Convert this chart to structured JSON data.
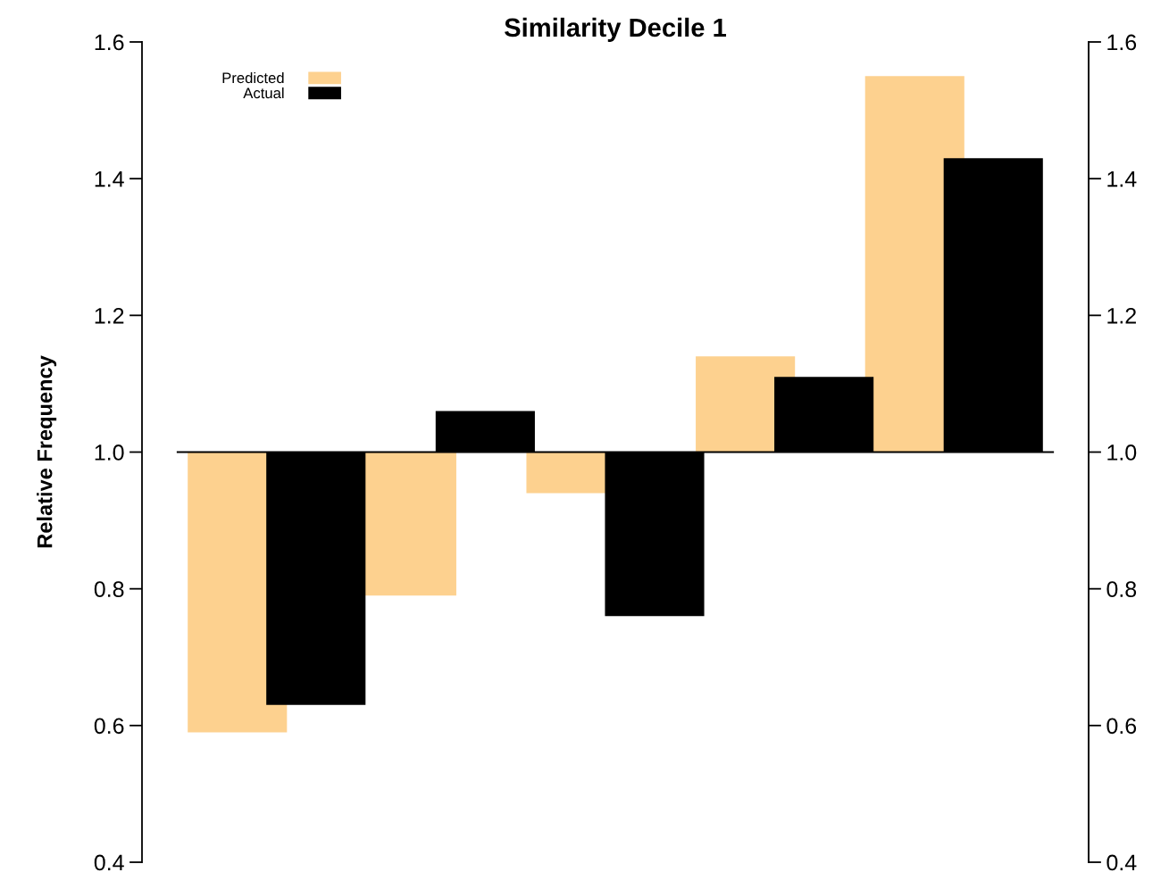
{
  "chart_data": {
    "type": "bar",
    "title": "Similarity Decile 1",
    "ylabel": "Relative Frequency",
    "categories": [
      null,
      null,
      null,
      null,
      null
    ],
    "series": [
      {
        "name": "Predicted",
        "color": "#fdd18f",
        "base": [
          1.0,
          1.0,
          1.0,
          1.0,
          1.0
        ],
        "values": [
          -0.41,
          -0.21,
          -0.06,
          0.14,
          0.55
        ]
      },
      {
        "name": "Actual",
        "color": "#000000",
        "base": [
          1.0,
          1.0,
          1.0,
          1.0,
          1.0
        ],
        "values": [
          -0.37,
          0.06,
          -0.24,
          0.11,
          0.43
        ]
      }
    ],
    "ylim": [
      0.4,
      1.6
    ],
    "yticks": [
      {
        "value": 0.4,
        "label": "0.4"
      },
      {
        "value": 0.6,
        "label": "0.6"
      },
      {
        "value": 0.8,
        "label": "0.8"
      },
      {
        "value": 1.0,
        "label": "1.0"
      },
      {
        "value": 1.2,
        "label": "1.2"
      },
      {
        "value": 1.4,
        "label": "1.4"
      },
      {
        "value": 1.6,
        "label": "1.6"
      }
    ],
    "y2lim": [
      0.4,
      1.6
    ],
    "y2ticks": [
      {
        "value": 0.4,
        "label": "0.4"
      },
      {
        "value": 0.6,
        "label": "0.6"
      },
      {
        "value": 0.8,
        "label": "0.8"
      },
      {
        "value": 1.0,
        "label": "1.0"
      },
      {
        "value": 1.2,
        "label": "1.2"
      },
      {
        "value": 1.4,
        "label": "1.4"
      },
      {
        "value": 1.6,
        "label": "1.6"
      }
    ],
    "ref_lines": [
      {
        "axis": "y",
        "value": 1.0,
        "color": "#000000"
      }
    ],
    "grid": false,
    "legend": "top left"
  }
}
